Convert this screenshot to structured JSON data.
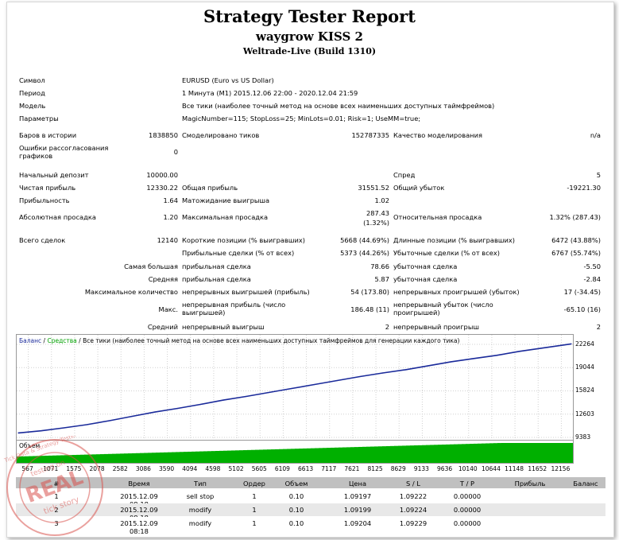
{
  "header": {
    "title": "Strategy Tester Report",
    "ea_name": "waygrow KISS 2",
    "server": "Weltrade-Live (Build 1310)"
  },
  "info": {
    "symbol_label": "Символ",
    "symbol_value": "EURUSD (Euro vs US Dollar)",
    "period_label": "Период",
    "period_value": "1 Минута (M1) 2015.12.06 22:00 - 2020.12.04 21:59",
    "model_label": "Модель",
    "model_value": "Все тики (наиболее точный метод на основе всех наименьших доступных таймфреймов)",
    "params_label": "Параметры",
    "params_value": "MagicNumber=115; StopLoss=25; MinLots=0.01; Risk=1; UseMM=true;"
  },
  "stats": {
    "bars_label": "Баров в истории",
    "bars_value": "1838850",
    "ticks_label": "Смоделировано тиков",
    "ticks_value": "152787335",
    "quality_label": "Качество моделирования",
    "quality_value": "n/a",
    "errors_label": "Ошибки рассогласования графиков",
    "errors_value": "0",
    "deposit_label": "Начальный депозит",
    "deposit_value": "10000.00",
    "spread_label": "Спред",
    "spread_value": "5",
    "net_label": "Чистая прибыль",
    "net_value": "12330.22",
    "gross_profit_label": "Общая прибыль",
    "gross_profit_value": "31551.52",
    "gross_loss_label": "Общий убыток",
    "gross_loss_value": "-19221.30",
    "pf_label": "Прибыльность",
    "pf_value": "1.64",
    "expect_label": "Матожидание выигрыша",
    "expect_value": "1.02",
    "absdd_label": "Абсолютная просадка",
    "absdd_value": "1.20",
    "maxdd_label": "Максимальная просадка",
    "maxdd_value1": "287.43",
    "maxdd_value2": "(1.32%)",
    "reldd_label": "Относительная просадка",
    "reldd_value": "1.32% (287.43)",
    "trades_label": "Всего сделок",
    "trades_value": "12140",
    "short_label": "Короткие позиции (% выигравших)",
    "short_value": "5668 (44.69%)",
    "long_label": "Длинные позиции (% выигравших)",
    "long_value": "6472 (43.88%)",
    "profit_trades_label": "Прибыльные сделки (% от всех)",
    "profit_trades_value": "5373 (44.26%)",
    "loss_trades_label": "Убыточные сделки (% от всех)",
    "loss_trades_value": "6767 (55.74%)",
    "largest_label": "Самая большая",
    "largest_profit_label": "прибыльная сделка",
    "largest_profit_value": "78.66",
    "largest_loss_label": "убыточная сделка",
    "largest_loss_value": "-5.50",
    "average_label": "Средняя",
    "avg_profit_label": "прибыльная сделка",
    "avg_profit_value": "5.87",
    "avg_loss_label": "убыточная сделка",
    "avg_loss_value": "-2.84",
    "maxcount_label": "Максимальное количество",
    "maxcons_wins_label": "непрерывных выигрышей (прибыль)",
    "maxcons_wins_value": "54 (173.80)",
    "maxcons_losses_label": "непрерывных проигрышей (убыток)",
    "maxcons_losses_value": "17 (-34.45)",
    "max_label": "Макс.",
    "maxcons_profit_label": "непрерывная прибыль (число выигрышей)",
    "maxcons_profit_value": "186.48 (11)",
    "maxcons_loss_label": "непрерывный убыток (число проигрышей)",
    "maxcons_loss_value": "-65.10 (16)",
    "avgc_label": "Средний",
    "avgcons_wins_label": "непрерывный выигрыш",
    "avgcons_wins_value": "2",
    "avgcons_losses_label": "непрерывный проигрыш",
    "avgcons_losses_value": "2"
  },
  "chart_data": {
    "type": "line",
    "legend_balance": "Баланс",
    "legend_sep": " / ",
    "legend_equity": "Средства",
    "legend_rest": " / Все тики (наиболее точный метод на основе всех наименьших доступных таймфреймов для генерации каждого тика)",
    "volume_label": "Объем",
    "y_ticks": [
      "22264",
      "19044",
      "15824",
      "12603",
      "9383"
    ],
    "x_ticks": [
      "567",
      "1071",
      "1575",
      "2078",
      "2582",
      "3086",
      "3590",
      "4094",
      "4598",
      "5102",
      "5605",
      "6109",
      "6613",
      "7117",
      "7621",
      "8125",
      "8629",
      "9133",
      "9636",
      "10140",
      "10644",
      "11148",
      "11652",
      "12156"
    ],
    "ylim": [
      9383,
      22264
    ],
    "xlim": [
      0,
      12140
    ],
    "series": [
      {
        "name": "Баланс",
        "x": [
          0,
          500,
          1000,
          1500,
          2000,
          2500,
          3000,
          3500,
          4000,
          4500,
          5000,
          5500,
          6000,
          6500,
          7000,
          7500,
          8000,
          8500,
          9000,
          9500,
          10000,
          10500,
          11000,
          11500,
          12140
        ],
        "y": [
          10000,
          10300,
          10700,
          11150,
          11700,
          12300,
          12900,
          13400,
          13950,
          14550,
          15050,
          15600,
          16150,
          16700,
          17250,
          17800,
          18300,
          18750,
          19300,
          19850,
          20300,
          20750,
          21300,
          21750,
          22330
        ]
      }
    ],
    "colors": {
      "balance": "#1a2a9a",
      "equity": "#00a000",
      "volume": "#00b000"
    }
  },
  "trades_table": {
    "headers": [
      "#",
      "Время",
      "Тип",
      "Ордер",
      "Объем",
      "Цена",
      "S / L",
      "T / P",
      "Прибыль",
      "Баланс"
    ],
    "rows": [
      [
        "1",
        "2015.12.09 08:18",
        "sell stop",
        "1",
        "0.10",
        "1.09197",
        "1.09222",
        "0.00000",
        "",
        ""
      ],
      [
        "2",
        "2015.12.09 08:18",
        "modify",
        "1",
        "0.10",
        "1.09199",
        "1.09224",
        "0.00000",
        "",
        ""
      ],
      [
        "3",
        "2015.12.09 08:18",
        "modify",
        "1",
        "0.10",
        "1.09204",
        "1.09229",
        "0.00000",
        "",
        ""
      ]
    ]
  },
  "stamp": {
    "lines": [
      "REAL",
      "tick story",
      "testing on",
      "Tick Data & Strategy Tester"
    ],
    "color": "#d9534f"
  }
}
